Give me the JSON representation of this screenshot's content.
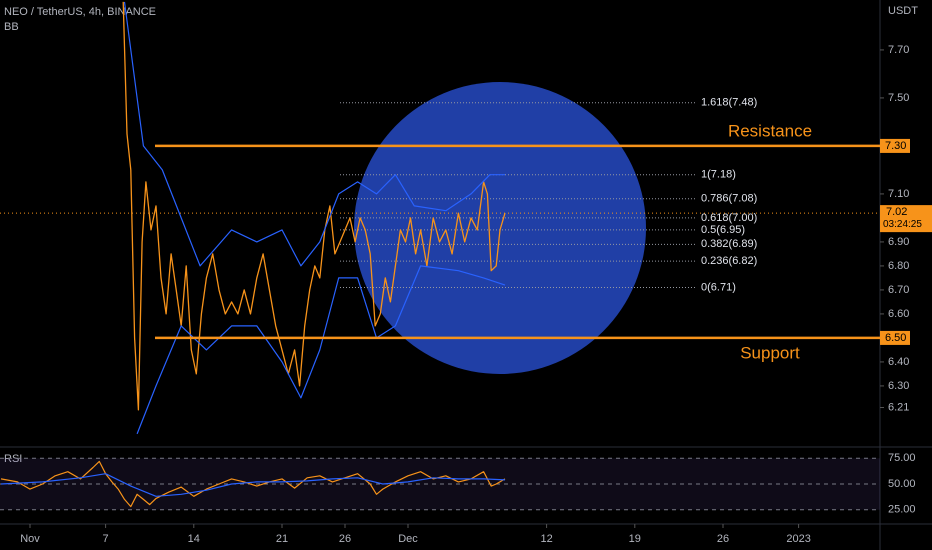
{
  "chart_data": {
    "type": "line",
    "title": "NEO / TetherUS, 4h, BINANCE",
    "indicator": "BB",
    "y_unit": "USDT",
    "xlim": [
      -1.38,
      68.46
    ],
    "xticks": [
      {
        "value": 1,
        "label": "Nov"
      },
      7,
      14,
      21,
      26,
      {
        "value": 31,
        "label": "Dec"
      },
      {
        "value": 42,
        "label": "12"
      },
      {
        "value": 49,
        "label": "19"
      },
      {
        "value": 56,
        "label": "26"
      },
      {
        "value": 62,
        "label": "2023"
      }
    ],
    "ylim": [
      6.033,
      7.908
    ],
    "yticks": [
      {
        "value": 7.7,
        "label": "7.70"
      },
      {
        "value": 7.5,
        "label": "7.50"
      },
      {
        "value": 7.1,
        "label": "7.10"
      },
      {
        "value": 6.9,
        "label": "6.90"
      },
      {
        "value": 6.8,
        "label": "6.80"
      },
      {
        "value": 6.7,
        "label": "6.70"
      },
      {
        "value": 6.6,
        "label": "6.60"
      },
      {
        "value": 6.4,
        "label": "6.40"
      },
      {
        "value": 6.3,
        "label": "6.30"
      },
      6.21
    ],
    "price": 7.02,
    "countdown": "03:24:25",
    "series": [
      {
        "color": "#f7931a",
        "x": [
          8.4,
          8.7,
          9.0,
          9.3,
          9.6,
          9.9,
          10.2,
          10.6,
          11.0,
          11.4,
          11.8,
          12.2,
          12.6,
          13.0,
          13.4,
          13.8,
          14.2,
          14.6,
          15.0,
          15.5,
          16.0,
          16.5,
          17.0,
          17.5,
          18.0,
          18.5,
          19.0,
          19.5,
          20.0,
          20.5,
          21.0,
          21.5,
          22.0,
          22.4,
          22.8,
          23.2,
          23.6,
          24.0,
          24.4,
          24.8,
          25.2,
          25.6,
          26.0,
          26.4,
          26.8,
          27.2,
          27.6,
          28.0,
          28.4,
          28.8,
          29.2,
          29.6,
          30.0,
          30.4,
          30.8,
          31.2,
          31.6,
          32.0,
          32.5,
          33.0,
          33.5,
          34.0,
          34.5,
          35.0,
          35.5,
          36.0,
          36.5,
          37.0,
          37.3,
          37.6,
          38.0,
          38.3,
          38.7
        ],
        "values": [
          7.9,
          7.35,
          7.2,
          6.5,
          6.2,
          6.9,
          7.15,
          6.95,
          7.05,
          6.75,
          6.6,
          6.85,
          6.7,
          6.55,
          6.8,
          6.45,
          6.35,
          6.6,
          6.75,
          6.85,
          6.7,
          6.6,
          6.65,
          6.6,
          6.7,
          6.6,
          6.75,
          6.85,
          6.7,
          6.55,
          6.45,
          6.35,
          6.45,
          6.3,
          6.55,
          6.7,
          6.8,
          6.75,
          6.95,
          7.05,
          6.85,
          6.9,
          6.95,
          7.0,
          6.9,
          7.0,
          6.95,
          6.85,
          6.55,
          6.6,
          6.75,
          6.65,
          6.8,
          6.95,
          6.9,
          7.0,
          6.85,
          6.95,
          6.8,
          7.0,
          6.9,
          6.95,
          6.85,
          7.02,
          6.9,
          7.0,
          6.95,
          7.15,
          7.1,
          6.78,
          6.8,
          6.95,
          7.02
        ]
      },
      {
        "color": "#2962ff",
        "x": [
          8.5,
          10,
          11.5,
          13,
          14.5,
          17,
          19,
          21,
          22.5,
          24,
          25.5,
          27,
          28.5,
          30,
          31.5,
          34,
          36,
          37.5,
          38.7
        ],
        "values": [
          7.9,
          7.3,
          7.2,
          7.0,
          6.8,
          6.95,
          6.9,
          6.95,
          6.8,
          6.9,
          7.1,
          7.15,
          7.1,
          7.18,
          7.05,
          7.03,
          7.1,
          7.18,
          7.18
        ]
      },
      {
        "color": "#2962ff",
        "x": [
          9.5,
          11,
          13,
          15,
          17,
          19,
          21,
          22.5,
          24,
          25.5,
          27,
          28.5,
          30,
          32,
          35,
          37,
          38.7
        ],
        "values": [
          6.1,
          6.3,
          6.55,
          6.45,
          6.55,
          6.55,
          6.4,
          6.25,
          6.45,
          6.75,
          6.75,
          6.5,
          6.55,
          6.8,
          6.78,
          6.75,
          6.72
        ]
      }
    ],
    "fib_levels": [
      {
        "value": 7.48,
        "label": "1.618(7.48)"
      },
      {
        "value": 7.18,
        "label": "1(7.18)"
      },
      {
        "value": 7.08,
        "label": "0.786(7.08)"
      },
      {
        "value": 7.0,
        "label": "0.618(7.00)"
      },
      {
        "value": 6.95,
        "label": "0.5(6.95)"
      },
      {
        "value": 6.89,
        "label": "0.382(6.89)"
      },
      {
        "value": 6.82,
        "label": "0.236(6.82)"
      },
      {
        "value": 6.71,
        "label": "0(6.71)"
      }
    ],
    "resistance": {
      "value": 7.3,
      "label": "7.30",
      "text": "Resistance"
    },
    "support": {
      "value": 6.5,
      "label": "6.50",
      "text": "Support"
    },
    "rsi": {
      "title": "RSI",
      "ylim": [
        15,
        85
      ],
      "yticks": [
        {
          "value": 75,
          "label": "75.00"
        },
        {
          "value": 50,
          "label": "50.00"
        },
        {
          "value": 25,
          "label": "25.00"
        }
      ],
      "series": [
        {
          "color": "#f7931a",
          "x": [
            -1.3,
            0,
            1,
            2,
            3,
            4,
            5,
            6,
            6.5,
            7,
            7.5,
            8,
            8.5,
            9,
            9.5,
            10,
            10.5,
            11,
            12,
            13,
            14,
            15,
            16,
            17,
            18,
            19,
            20,
            21,
            22,
            23,
            24,
            25,
            26,
            27,
            28,
            28.5,
            29,
            30,
            31,
            32,
            33,
            34,
            35,
            36,
            37,
            37.6,
            38,
            38.7
          ],
          "values": [
            55,
            52,
            45,
            50,
            58,
            62,
            55,
            66,
            72,
            60,
            52,
            45,
            35,
            28,
            40,
            35,
            30,
            36,
            42,
            47,
            38,
            45,
            50,
            55,
            52,
            48,
            52,
            55,
            46,
            56,
            58,
            52,
            56,
            60,
            50,
            40,
            45,
            52,
            58,
            62,
            55,
            58,
            52,
            55,
            62,
            48,
            50,
            55
          ]
        },
        {
          "color": "#2962ff",
          "x": [
            -1.3,
            2,
            5,
            7,
            9,
            11,
            13,
            15,
            17,
            19,
            21,
            23,
            25,
            27,
            29,
            31,
            33,
            35,
            37,
            38.7
          ],
          "values": [
            50,
            52,
            56,
            60,
            48,
            38,
            40,
            44,
            50,
            52,
            52,
            53,
            55,
            56,
            50,
            52,
            56,
            55,
            55,
            54
          ]
        }
      ]
    }
  }
}
